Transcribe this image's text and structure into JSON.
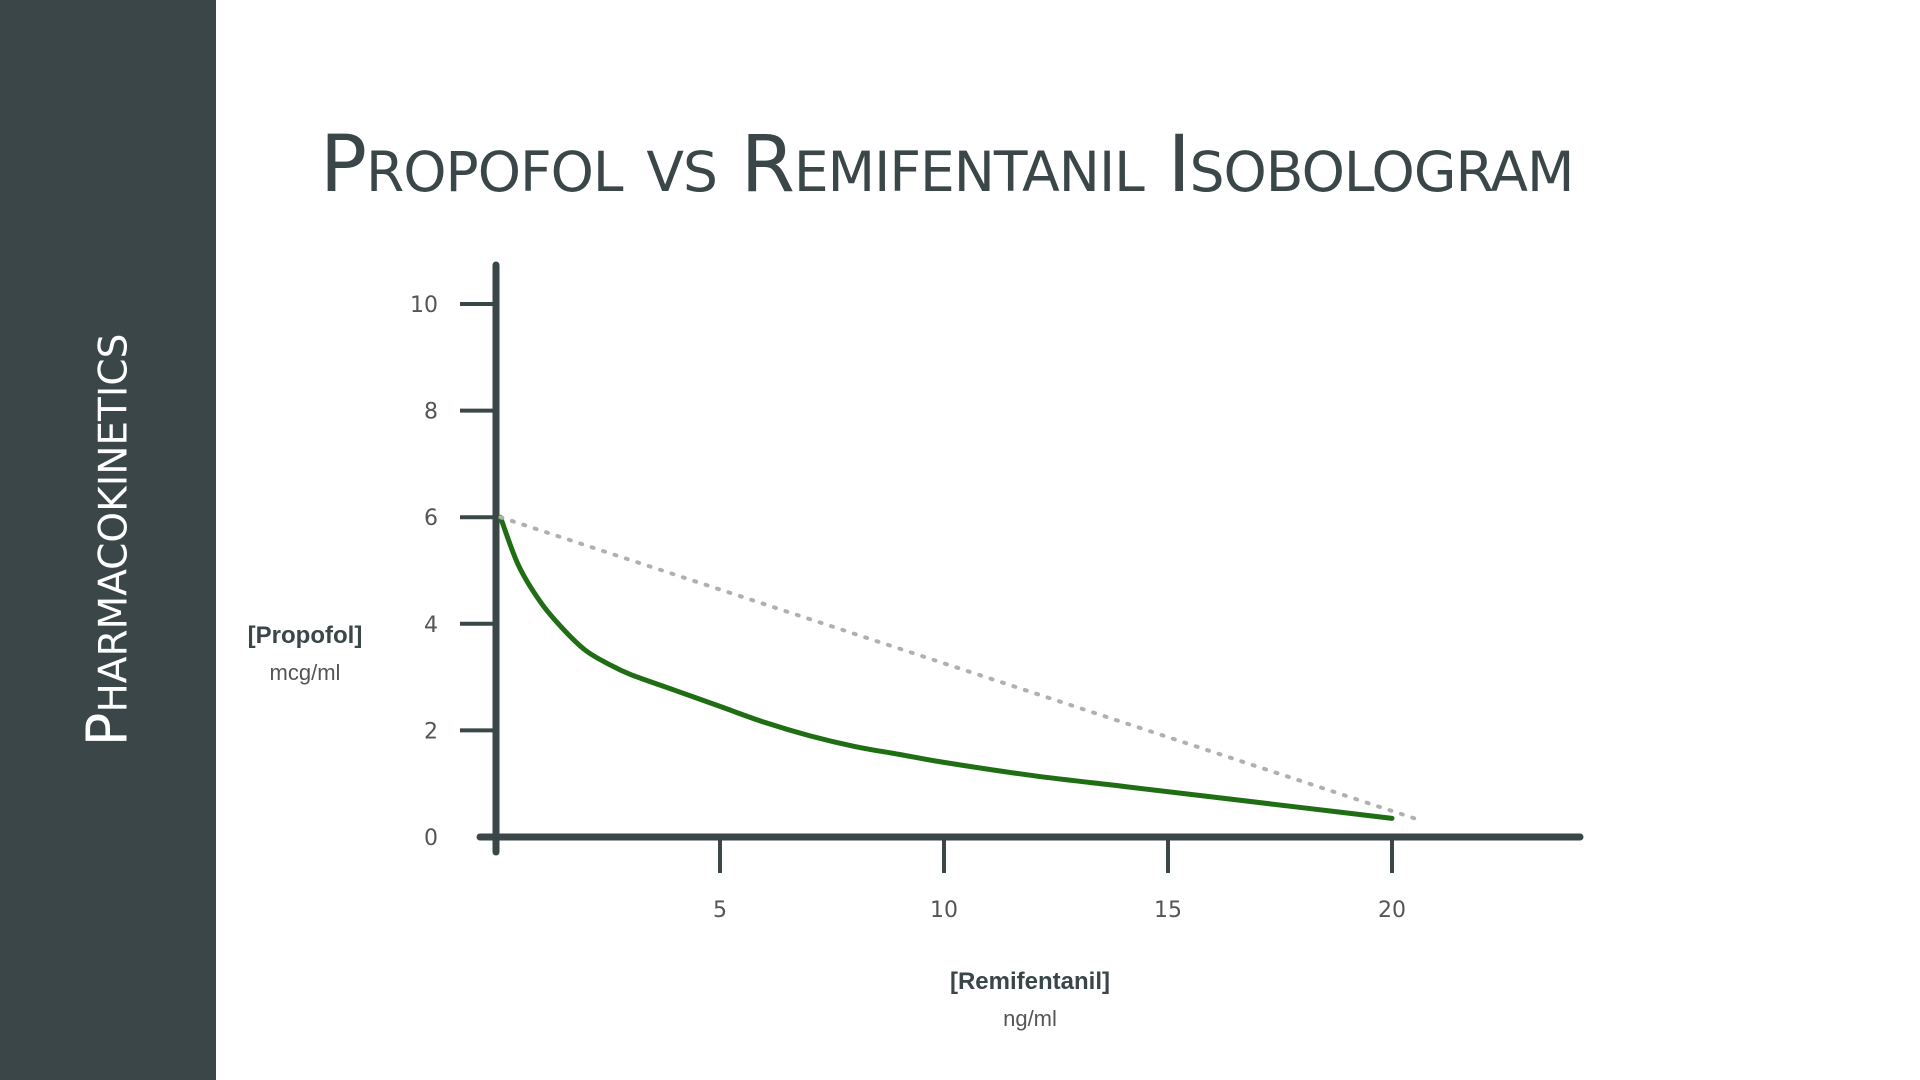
{
  "sidebar": {
    "title": "Pharmacokinetics"
  },
  "page": {
    "title": "Propofol vs Remifentanil Isobologram"
  },
  "colors": {
    "sidebar_bg": "#3a4648",
    "axis": "#3a4648",
    "curve": "#1f6e14",
    "additivity_line": "#b0b0b0"
  },
  "chart_data": {
    "type": "line",
    "title": "Propofol vs Remifentanil Isobologram",
    "xlabel": "[Remifentanil]",
    "xlabel_unit": "ng/ml",
    "ylabel": "[Propofol]",
    "ylabel_unit": "mcg/ml",
    "xlim": [
      0,
      24
    ],
    "ylim": [
      0,
      10
    ],
    "x_ticks": [
      5,
      10,
      15,
      20
    ],
    "y_ticks": [
      0,
      2,
      4,
      6,
      8,
      10
    ],
    "grid": false,
    "series": [
      {
        "style": "solid",
        "color": "#1f6e14",
        "x": [
          0.1,
          0.5,
          1,
          1.5,
          2,
          2.5,
          3,
          4,
          5,
          6,
          7,
          8,
          9,
          10,
          12,
          14,
          16,
          18,
          20
        ],
        "y": [
          6.0,
          5.1,
          4.4,
          3.9,
          3.5,
          3.25,
          3.05,
          2.75,
          2.45,
          2.15,
          1.9,
          1.7,
          1.55,
          1.4,
          1.15,
          0.95,
          0.75,
          0.55,
          0.35
        ]
      },
      {
        "style": "dotted",
        "color": "#b0b0b0",
        "x": [
          0.1,
          20.5
        ],
        "y": [
          6.0,
          0.35
        ]
      }
    ]
  }
}
